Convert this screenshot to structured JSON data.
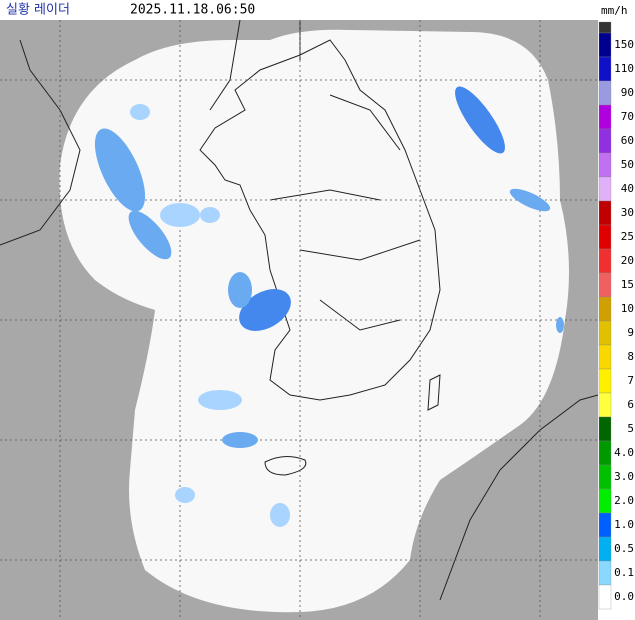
{
  "header": {
    "title": "실황 레이더",
    "timestamp": "2025.11.18.06:50",
    "unit": "mm/h"
  },
  "legend": {
    "labels": [
      "150",
      "110",
      "90",
      "70",
      "60",
      "50",
      "40",
      "30",
      "25",
      "20",
      "15",
      "10",
      "9",
      "8",
      "7",
      "6",
      "5",
      "4.0",
      "3.0",
      "2.0",
      "1.0",
      "0.5",
      "0.1",
      "0.0"
    ]
  }
}
